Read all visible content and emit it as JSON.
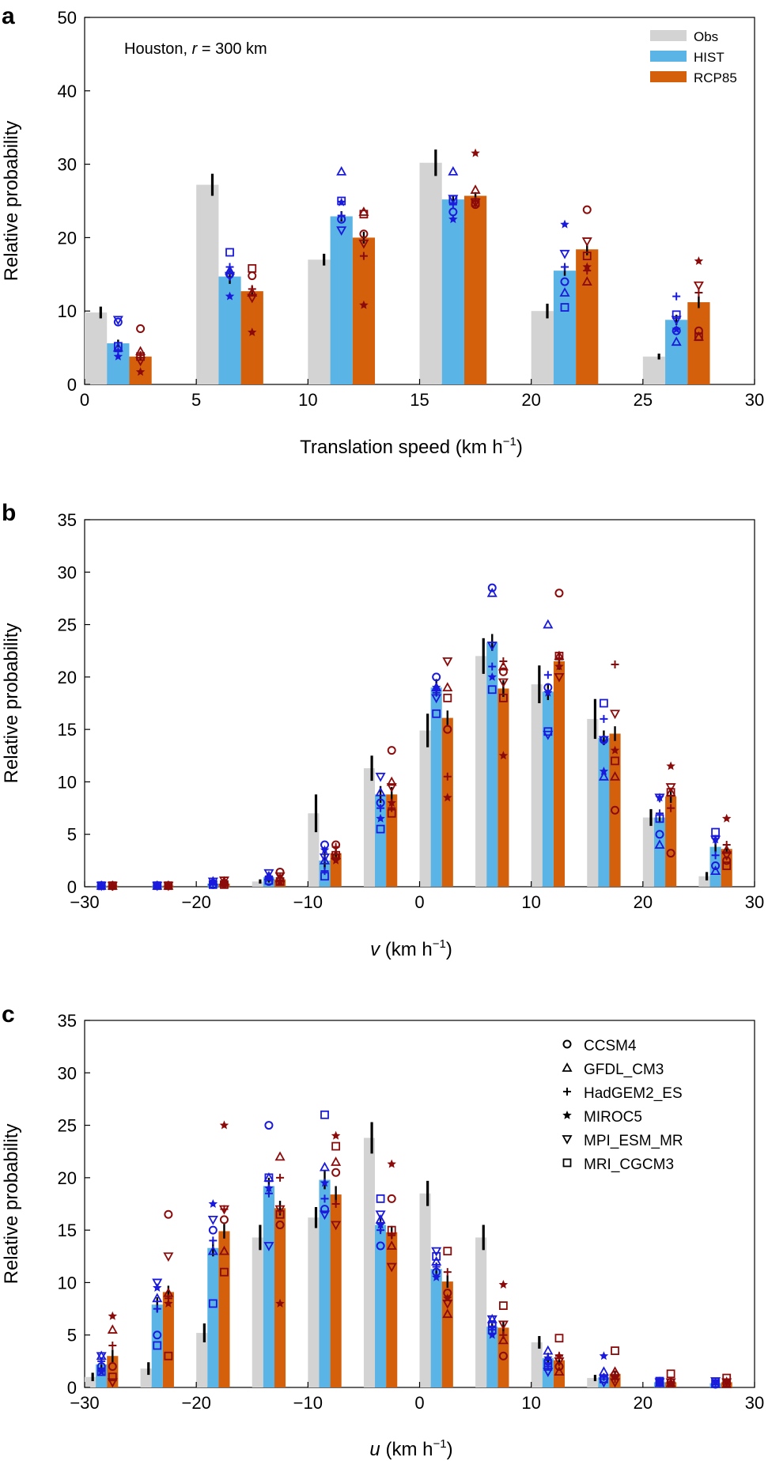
{
  "colors": {
    "obs": "#d3d3d3",
    "hist": "#5ab4e5",
    "rcp": "#d4600c",
    "hist_marker": "#1a1adc",
    "rcp_marker": "#8b0b0b",
    "err": "#000000",
    "axis": "#000000"
  },
  "chart_data": [
    {
      "type": "bar",
      "panel_label": "a",
      "annotation": {
        "prefix": "Houston, ",
        "var": "r",
        "suffix": " = 300 km"
      },
      "xlabel": "Translation speed (km h",
      "xlabel_var": "",
      "xlabel_sup": "−1",
      "xlabel_close": ")",
      "ylabel": "Relative probability",
      "xlim": [
        0,
        30
      ],
      "ylim": [
        0,
        50
      ],
      "xticks": [
        0,
        5,
        10,
        15,
        20,
        25,
        30
      ],
      "xtick_labels": [
        "0",
        "5",
        "10",
        "15",
        "20",
        "25",
        "30"
      ],
      "yticks": [
        0,
        10,
        20,
        30,
        40,
        50
      ],
      "ytick_labels": [
        "0",
        "10",
        "20",
        "30",
        "40",
        "50"
      ],
      "bin_width": 5,
      "bin_start": 0,
      "legend": [
        "Obs",
        "HIST",
        "RCP85"
      ],
      "series": [
        {
          "name": "Obs",
          "values": [
            9.8,
            27.2,
            17.0,
            30.2,
            10.0,
            3.8
          ],
          "err": [
            0.8,
            1.5,
            0.8,
            1.8,
            1.0,
            0.4
          ]
        },
        {
          "name": "HIST",
          "values": [
            5.6,
            14.7,
            22.9,
            25.2,
            15.5,
            8.8
          ],
          "err": [
            0.5,
            1.0,
            0.7,
            0.6,
            0.7,
            0.7
          ]
        },
        {
          "name": "RCP85",
          "values": [
            3.8,
            12.7,
            20.0,
            25.7,
            18.4,
            11.2
          ],
          "err": [
            0.4,
            0.7,
            0.8,
            0.5,
            0.8,
            0.8
          ]
        }
      ],
      "models": {
        "HIST": {
          "CCSM4": [
            8.5,
            15.0,
            22.5,
            23.5,
            14.0,
            7.3
          ],
          "GFDL_CM3": [
            5.0,
            15.5,
            29.0,
            29.0,
            12.5,
            5.8
          ],
          "HadGEM2_ES": [
            4.5,
            16.0,
            23.0,
            24.5,
            16.0,
            12.0
          ],
          "MIROC5": [
            3.8,
            12.0,
            24.8,
            22.5,
            21.8,
            7.5
          ],
          "MPI_ESM_MR": [
            8.8,
            14.8,
            21.0,
            25.3,
            17.8,
            8.8
          ],
          "MRI_CGCM3": [
            5.2,
            18.0,
            25.0,
            25.2,
            10.5,
            9.5
          ]
        },
        "RCP85": {
          "CCSM4": [
            7.6,
            14.8,
            20.5,
            24.5,
            23.8,
            7.3
          ],
          "GFDL_CM3": [
            4.5,
            12.5,
            23.5,
            26.5,
            14.0,
            6.5
          ],
          "HadGEM2_ES": [
            4.0,
            13.0,
            17.5,
            25.0,
            15.5,
            12.5
          ],
          "MIROC5": [
            1.7,
            7.1,
            10.8,
            31.5,
            16.0,
            16.8
          ],
          "MPI_ESM_MR": [
            3.2,
            11.8,
            19.2,
            24.8,
            19.5,
            13.5
          ],
          "MRI_CGCM3": [
            3.8,
            15.8,
            23.2,
            24.8,
            17.5,
            6.5
          ]
        }
      }
    },
    {
      "type": "bar",
      "panel_label": "b",
      "xlabel": " (km h",
      "xlabel_var": "v",
      "xlabel_sup": "−1",
      "xlabel_close": ")",
      "ylabel": "Relative probability",
      "xlim": [
        -30,
        30
      ],
      "ylim": [
        0,
        35
      ],
      "xticks": [
        -30,
        -20,
        -10,
        0,
        10,
        20,
        30
      ],
      "xtick_labels": [
        "−30",
        "−20",
        "−10",
        "0",
        "10",
        "20",
        "30"
      ],
      "yticks": [
        0,
        5,
        10,
        15,
        20,
        25,
        30,
        35
      ],
      "ytick_labels": [
        "0",
        "5",
        "10",
        "15",
        "20",
        "25",
        "30",
        "35"
      ],
      "bin_width": 5,
      "bin_start": -30,
      "series": [
        {
          "name": "Obs",
          "values": [
            0.0,
            0.0,
            0.0,
            0.5,
            7.0,
            11.3,
            14.9,
            22.0,
            19.3,
            16.0,
            6.6,
            1.0
          ],
          "err": [
            0,
            0,
            0,
            0.2,
            1.8,
            1.2,
            1.6,
            1.7,
            1.8,
            1.9,
            0.8,
            0.4
          ]
        },
        {
          "name": "HIST",
          "values": [
            0.1,
            0.1,
            0.3,
            0.9,
            2.5,
            8.8,
            19.0,
            23.3,
            18.6,
            14.2,
            6.6,
            3.8
          ],
          "err": [
            0.05,
            0.05,
            0.2,
            0.5,
            0.8,
            0.8,
            0.8,
            0.8,
            0.8,
            0.7,
            0.5,
            0.5
          ]
        },
        {
          "name": "RCP85",
          "values": [
            0.1,
            0.1,
            0.3,
            0.7,
            3.2,
            8.8,
            16.1,
            18.9,
            21.5,
            14.6,
            8.6,
            3.6
          ],
          "err": [
            0.05,
            0.05,
            0.2,
            0.4,
            0.6,
            0.7,
            0.7,
            0.8,
            0.8,
            0.7,
            0.6,
            0.4
          ]
        }
      ],
      "models": {
        "HIST": {
          "CCSM4": [
            0.1,
            0.1,
            0.2,
            0.5,
            4.0,
            8.0,
            20.0,
            28.5,
            19.0,
            14.0,
            5.0,
            2.0
          ],
          "GFDL_CM3": [
            0.1,
            0.1,
            0.5,
            1.0,
            2.5,
            9.0,
            19.0,
            28.0,
            25.0,
            10.5,
            4.0,
            1.5
          ],
          "HadGEM2_ES": [
            0.1,
            0.1,
            0.3,
            1.0,
            1.5,
            7.5,
            18.5,
            21.0,
            20.2,
            16.0,
            7.0,
            3.0
          ],
          "MIROC5": [
            0.0,
            0.1,
            0.4,
            0.8,
            3.5,
            6.5,
            19.0,
            20.0,
            18.5,
            11.0,
            8.5,
            4.5
          ],
          "MPI_ESM_MR": [
            0.1,
            0.1,
            0.5,
            1.3,
            2.8,
            10.5,
            18.0,
            23.0,
            14.5,
            14.0,
            8.5,
            4.5
          ],
          "MRI_CGCM3": [
            0.1,
            0.1,
            0.2,
            0.6,
            1.0,
            5.5,
            16.5,
            18.8,
            14.8,
            17.5,
            6.5,
            5.2
          ]
        },
        "RCP85": {
          "CCSM4": [
            0.1,
            0.1,
            0.3,
            1.4,
            4.0,
            13.0,
            15.0,
            20.5,
            28.0,
            7.3,
            3.2,
            2.5
          ],
          "GFDL_CM3": [
            0.1,
            0.1,
            0.5,
            0.8,
            3.0,
            10.0,
            19.0,
            21.0,
            22.0,
            10.5,
            9.0,
            3.5
          ],
          "HadGEM2_ES": [
            0.0,
            0.1,
            0.3,
            0.6,
            3.8,
            7.5,
            10.5,
            21.5,
            21.8,
            21.2,
            7.5,
            4.0
          ],
          "MIROC5": [
            0.1,
            0.1,
            0.3,
            0.5,
            2.5,
            8.0,
            8.5,
            12.5,
            21.0,
            13.0,
            11.5,
            6.5
          ],
          "MPI_ESM_MR": [
            0.1,
            0.1,
            0.6,
            1.0,
            2.8,
            9.5,
            21.5,
            19.5,
            20.0,
            16.5,
            9.5,
            3.0
          ],
          "MRI_CGCM3": [
            0.1,
            0.1,
            0.2,
            0.5,
            3.0,
            7.0,
            18.0,
            18.0,
            22.0,
            12.0,
            9.0,
            2.0
          ]
        }
      }
    },
    {
      "type": "bar",
      "panel_label": "c",
      "xlabel": " (km h",
      "xlabel_var": "u",
      "xlabel_sup": "−1",
      "xlabel_close": ")",
      "ylabel": "Relative probability",
      "xlim": [
        -30,
        30
      ],
      "ylim": [
        0,
        35
      ],
      "xticks": [
        -30,
        -20,
        -10,
        0,
        10,
        20,
        30
      ],
      "xtick_labels": [
        "−30",
        "−20",
        "−10",
        "0",
        "10",
        "20",
        "30"
      ],
      "yticks": [
        0,
        5,
        10,
        15,
        20,
        25,
        30,
        35
      ],
      "ytick_labels": [
        "0",
        "5",
        "10",
        "15",
        "20",
        "25",
        "30",
        "35"
      ],
      "bin_width": 5,
      "bin_start": -30,
      "legend": [
        "CCSM4",
        "GFDL_CM3",
        "HadGEM2_ES",
        "MIROC5",
        "MPI_ESM_MR",
        "MRI_CGCM3"
      ],
      "series": [
        {
          "name": "Obs",
          "values": [
            1.0,
            1.8,
            5.2,
            14.3,
            16.2,
            23.8,
            18.5,
            14.3,
            4.3,
            0.9,
            0.0,
            0.0
          ],
          "err": [
            0.4,
            0.6,
            0.9,
            1.2,
            1.0,
            1.5,
            1.2,
            1.2,
            0.6,
            0.3,
            0,
            0
          ]
        },
        {
          "name": "HIST",
          "values": [
            2.2,
            7.9,
            13.3,
            19.2,
            19.8,
            15.5,
            11.3,
            5.8,
            2.8,
            1.0,
            0.5,
            0.4
          ],
          "err": [
            0.6,
            0.7,
            0.8,
            0.8,
            0.9,
            0.7,
            0.6,
            0.5,
            0.5,
            0.3,
            0.2,
            0.2
          ]
        },
        {
          "name": "RCP85",
          "values": [
            3.0,
            9.1,
            14.9,
            17.1,
            18.4,
            14.8,
            10.1,
            5.7,
            2.6,
            1.3,
            0.5,
            0.5
          ],
          "err": [
            0.6,
            0.6,
            0.7,
            0.7,
            0.8,
            0.6,
            0.6,
            0.6,
            0.5,
            0.3,
            0.2,
            0.2
          ]
        }
      ],
      "models": {
        "HIST": {
          "CCSM4": [
            2.0,
            5.0,
            15.0,
            25.0,
            17.0,
            13.5,
            11.0,
            6.0,
            2.5,
            0.8,
            0.5,
            0.3
          ],
          "GFDL_CM3": [
            3.0,
            8.5,
            13.0,
            20.0,
            21.0,
            16.0,
            12.0,
            6.5,
            3.5,
            1.5,
            0.4,
            0.3
          ],
          "HadGEM2_ES": [
            2.5,
            7.5,
            14.0,
            18.5,
            18.0,
            15.0,
            11.5,
            5.5,
            2.0,
            1.0,
            0.5,
            0.3
          ],
          "MIROC5": [
            1.5,
            9.5,
            17.5,
            19.0,
            19.5,
            15.5,
            10.5,
            5.0,
            2.8,
            3.0,
            0.6,
            0.5
          ],
          "MPI_ESM_MR": [
            3.0,
            10.0,
            16.0,
            13.5,
            16.5,
            16.5,
            13.0,
            6.5,
            1.5,
            0.5,
            0.5,
            0.6
          ],
          "MRI_CGCM3": [
            1.5,
            4.0,
            8.0,
            20.0,
            26.0,
            18.0,
            12.5,
            5.5,
            2.0,
            0.8,
            0.6,
            0.4
          ]
        },
        "RCP85": {
          "CCSM4": [
            2.0,
            16.5,
            16.0,
            15.5,
            20.5,
            18.0,
            9.0,
            3.0,
            2.0,
            1.2,
            0.5,
            0.4
          ],
          "GFDL_CM3": [
            5.5,
            9.0,
            13.0,
            22.0,
            21.5,
            13.5,
            7.0,
            4.5,
            1.5,
            1.5,
            0.4,
            0.3
          ],
          "HadGEM2_ES": [
            4.0,
            8.5,
            17.0,
            20.0,
            17.5,
            14.5,
            11.0,
            5.0,
            3.0,
            0.8,
            0.5,
            0.5
          ],
          "MIROC5": [
            6.8,
            8.0,
            25.0,
            8.0,
            24.0,
            21.3,
            8.5,
            9.8,
            3.0,
            1.0,
            0.3,
            0.6
          ],
          "MPI_ESM_MR": [
            0.5,
            12.5,
            17.0,
            17.0,
            15.5,
            11.5,
            8.0,
            6.0,
            2.5,
            0.5,
            0.5,
            0.5
          ],
          "MRI_CGCM3": [
            1.0,
            3.0,
            11.0,
            16.5,
            23.0,
            15.0,
            13.0,
            7.8,
            4.7,
            3.5,
            1.3,
            0.9
          ]
        }
      }
    }
  ]
}
